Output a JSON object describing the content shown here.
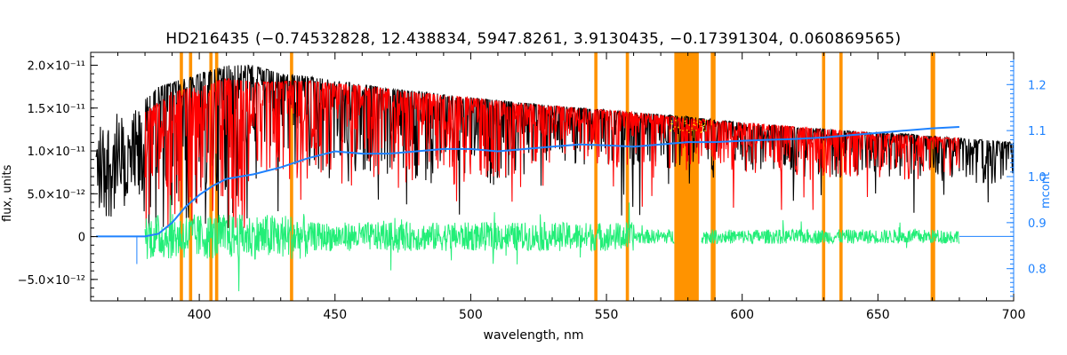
{
  "chart_data": {
    "type": "line",
    "title": "HD216435   (−0.74532828, 12.438834, 5947.8261, 3.9130435, −0.17391304, 0.060869565)",
    "xlabel": "wavelength, nm",
    "ylabel_left": "flux, units",
    "ylabel_right": "mcont",
    "xlim": [
      360,
      700
    ],
    "ylim": [
      -7.5e-12,
      2.15e-11
    ],
    "ylim_right": [
      0.73,
      1.27
    ],
    "x_ticks": [
      {
        "value": 400,
        "label": "400"
      },
      {
        "value": 450,
        "label": "450"
      },
      {
        "value": 500,
        "label": "500"
      },
      {
        "value": 550,
        "label": "550"
      },
      {
        "value": 600,
        "label": "600"
      },
      {
        "value": 650,
        "label": "650"
      },
      {
        "value": 700,
        "label": "700"
      }
    ],
    "y_ticks": [
      {
        "value": -5e-12,
        "label": "−5.0×10⁻¹²"
      },
      {
        "value": 0,
        "label": "0"
      },
      {
        "value": 5e-12,
        "label": "5.0×10⁻¹²"
      },
      {
        "value": 1e-11,
        "label": "1.0×10⁻¹¹"
      },
      {
        "value": 1.5e-11,
        "label": "1.5×10⁻¹¹"
      },
      {
        "value": 2e-11,
        "label": "2.0×10⁻¹¹"
      }
    ],
    "y_right_ticks": [
      {
        "value": 0.8,
        "label": "0.8"
      },
      {
        "value": 0.9,
        "label": "0.9"
      },
      {
        "value": 1.0,
        "label": "1.0"
      },
      {
        "value": 1.1,
        "label": "1.1"
      },
      {
        "value": 1.2,
        "label": "1.2"
      }
    ],
    "masked_lines_nm": [
      393.4,
      396.8,
      404.3,
      406.4,
      434.0,
      546.1,
      557.7,
      589.0,
      589.6,
      630.0,
      636.4,
      670.0,
      670.5
    ],
    "masked_band_nm": [
      575,
      584
    ],
    "observed_envelope": {
      "x": [
        362,
        368,
        374,
        380,
        385,
        390,
        395,
        400,
        405,
        410,
        420,
        430,
        440,
        450,
        460,
        470,
        480,
        490,
        500,
        520,
        540,
        560,
        580,
        600,
        620,
        640,
        660,
        680,
        700
      ],
      "y": [
        1.35e-11,
        1.45e-11,
        1.4e-11,
        1.6e-11,
        1.75e-11,
        1.8e-11,
        1.85e-11,
        1.9e-11,
        1.95e-11,
        2e-11,
        2e-11,
        1.9e-11,
        1.87e-11,
        1.82e-11,
        1.78e-11,
        1.72e-11,
        1.7e-11,
        1.66e-11,
        1.62e-11,
        1.56e-11,
        1.5e-11,
        1.45e-11,
        1.4e-11,
        1.33e-11,
        1.28e-11,
        1.23e-11,
        1.2e-11,
        1.15e-11,
        1.1e-11
      ]
    },
    "model_envelope": {
      "x": [
        380,
        390,
        400,
        410,
        420,
        440,
        460,
        480,
        500,
        520,
        540,
        560,
        580,
        600,
        620,
        640,
        660,
        680
      ],
      "y": [
        1.45e-11,
        1.7e-11,
        1.75e-11,
        1.85e-11,
        1.8e-11,
        1.82e-11,
        1.76e-11,
        1.68e-11,
        1.62e-11,
        1.55e-11,
        1.5e-11,
        1.45e-11,
        1.38e-11,
        1.33e-11,
        1.28e-11,
        1.23e-11,
        1.18e-11,
        1.15e-11
      ]
    },
    "mcont": {
      "x": [
        362,
        380,
        385,
        390,
        395,
        400,
        405,
        410,
        420,
        430,
        440,
        450,
        460,
        470,
        480,
        490,
        500,
        510,
        520,
        530,
        540,
        550,
        560,
        570,
        580,
        590,
        600,
        610,
        620,
        630,
        640,
        650,
        660,
        670,
        680
      ],
      "y": [
        0.87,
        0.87,
        0.876,
        0.9,
        0.935,
        0.96,
        0.98,
        0.995,
        1.005,
        1.02,
        1.04,
        1.055,
        1.05,
        1.05,
        1.055,
        1.06,
        1.06,
        1.055,
        1.06,
        1.065,
        1.07,
        1.068,
        1.065,
        1.07,
        1.075,
        1.075,
        1.078,
        1.08,
        1.082,
        1.085,
        1.09,
        1.095,
        1.1,
        1.105,
        1.108
      ]
    },
    "residuals": {
      "x_range": [
        380,
        680
      ],
      "typical_amplitude": 1.2e-12
    },
    "grid": false,
    "legend": "none",
    "colors": {
      "observed": "#000000",
      "model": "#ff0000",
      "mask": "#ff9300",
      "mcont": "#1e82ff",
      "residual": "#22ee77",
      "yellow_points": "#ffff00",
      "right_axis": "#1e82ff"
    }
  }
}
